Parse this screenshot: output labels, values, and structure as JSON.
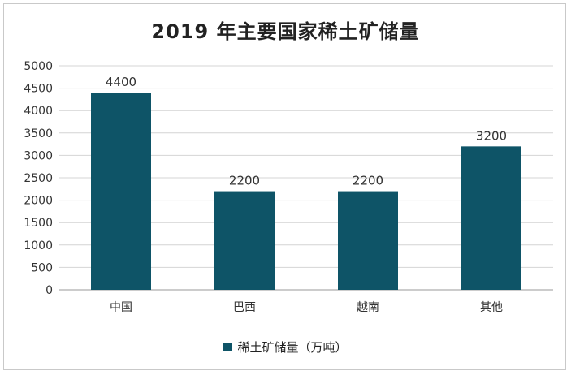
{
  "chart_data": {
    "type": "bar",
    "title": "2019 年主要国家稀土矿储量",
    "categories": [
      "中国",
      "巴西",
      "越南",
      "其他"
    ],
    "series": [
      {
        "name": "稀土矿储量（万吨）",
        "values": [
          4400,
          2200,
          2200,
          3200
        ],
        "color": "#0e5467"
      }
    ],
    "ylim": [
      0,
      5000
    ],
    "yticks": [
      0,
      500,
      1000,
      1500,
      2000,
      2500,
      3000,
      3500,
      4000,
      4500,
      5000
    ],
    "grid": true,
    "legend_position": "bottom",
    "data_labels": true
  }
}
